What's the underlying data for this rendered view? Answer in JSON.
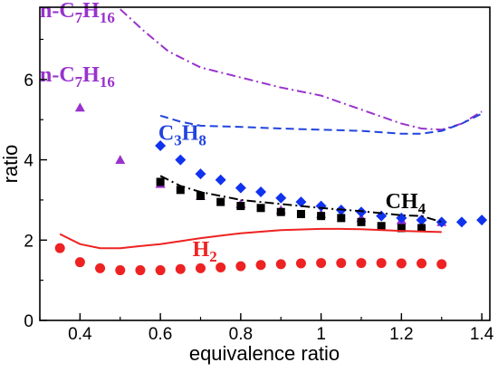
{
  "chart_data": {
    "type": "scatter",
    "xlabel": "equivalence ratio",
    "ylabel": "ratio",
    "xlim": [
      0.3,
      1.42
    ],
    "ylim": [
      0,
      7.8
    ],
    "xticks": [
      "0.4",
      "0.6",
      "0.8",
      "1",
      "1.2",
      "1.4"
    ],
    "xtick_values": [
      0.4,
      0.6,
      0.8,
      1.0,
      1.2,
      1.4
    ],
    "yticks": [
      "0",
      "2",
      "4",
      "6"
    ],
    "ytick_values": [
      0,
      2,
      4,
      6
    ],
    "grid": false,
    "series": [
      {
        "kind": "line",
        "style": "dash-dot",
        "color": "#9933cc",
        "x": [
          0.5,
          0.56,
          0.62,
          0.7,
          0.8,
          0.9,
          1.0,
          1.1,
          1.2,
          1.25,
          1.3,
          1.35,
          1.4
        ],
        "values": [
          7.75,
          7.2,
          6.7,
          6.3,
          6.05,
          5.8,
          5.6,
          5.25,
          4.9,
          4.78,
          4.75,
          4.9,
          5.2
        ]
      },
      {
        "kind": "markers",
        "marker": "triangle",
        "color": "#9933cc",
        "x": [
          0.4,
          0.5,
          0.6,
          0.7,
          0.8,
          0.9,
          1.0,
          1.1,
          1.2,
          1.3
        ],
        "values": [
          5.3,
          4.0,
          3.4,
          3.1,
          2.9,
          2.75,
          2.65,
          2.55,
          2.5,
          2.45
        ]
      },
      {
        "kind": "line",
        "style": "dashed",
        "color": "#2244dd",
        "x": [
          0.6,
          0.65,
          0.7,
          0.8,
          0.9,
          1.0,
          1.1,
          1.2,
          1.25,
          1.3,
          1.35,
          1.4
        ],
        "values": [
          5.1,
          4.95,
          4.85,
          4.82,
          4.78,
          4.75,
          4.72,
          4.65,
          4.65,
          4.72,
          4.9,
          5.15
        ]
      },
      {
        "kind": "markers",
        "marker": "diamond",
        "color": "#1133ee",
        "x": [
          0.6,
          0.65,
          0.7,
          0.75,
          0.8,
          0.85,
          0.9,
          0.95,
          1.0,
          1.05,
          1.1,
          1.15,
          1.2,
          1.25,
          1.3,
          1.35,
          1.4
        ],
        "values": [
          4.35,
          4.0,
          3.65,
          3.5,
          3.3,
          3.2,
          3.05,
          2.95,
          2.85,
          2.75,
          2.7,
          2.6,
          2.55,
          2.5,
          2.45,
          2.45,
          2.5
        ]
      },
      {
        "kind": "line",
        "style": "dash-dot",
        "color": "#000000",
        "x": [
          0.6,
          0.65,
          0.7,
          0.75,
          0.8,
          0.9,
          1.0,
          1.1,
          1.2,
          1.25,
          1.3
        ],
        "values": [
          3.6,
          3.35,
          3.2,
          3.1,
          3.0,
          2.9,
          2.8,
          2.72,
          2.62,
          2.6,
          2.45
        ]
      },
      {
        "kind": "markers",
        "marker": "square",
        "color": "#000000",
        "x": [
          0.6,
          0.65,
          0.7,
          0.75,
          0.8,
          0.85,
          0.9,
          0.95,
          1.0,
          1.05,
          1.1,
          1.15,
          1.2,
          1.25
        ],
        "values": [
          3.45,
          3.25,
          3.1,
          2.95,
          2.85,
          2.8,
          2.7,
          2.65,
          2.6,
          2.55,
          2.45,
          2.35,
          2.3,
          2.3
        ]
      },
      {
        "kind": "line",
        "style": "solid",
        "color": "#ee2222",
        "x": [
          0.35,
          0.4,
          0.45,
          0.5,
          0.55,
          0.6,
          0.7,
          0.8,
          0.9,
          1.0,
          1.05,
          1.1,
          1.2,
          1.3
        ],
        "values": [
          2.15,
          1.9,
          1.8,
          1.8,
          1.85,
          1.9,
          2.05,
          2.17,
          2.25,
          2.28,
          2.28,
          2.27,
          2.23,
          2.2
        ]
      },
      {
        "kind": "markers",
        "marker": "circle",
        "color": "#ee2222",
        "x": [
          0.35,
          0.4,
          0.45,
          0.5,
          0.55,
          0.6,
          0.65,
          0.7,
          0.75,
          0.8,
          0.85,
          0.9,
          0.95,
          1.0,
          1.05,
          1.1,
          1.15,
          1.2,
          1.25,
          1.3
        ],
        "values": [
          1.8,
          1.45,
          1.3,
          1.25,
          1.25,
          1.25,
          1.28,
          1.3,
          1.32,
          1.35,
          1.38,
          1.4,
          1.42,
          1.43,
          1.43,
          1.43,
          1.43,
          1.42,
          1.42,
          1.4
        ]
      }
    ],
    "annotations": [
      {
        "text": "n-C7H16",
        "parts": [
          [
            "n-C",
            ""
          ],
          [
            "7",
            "sub"
          ],
          [
            "H",
            ""
          ],
          [
            "16",
            "sub"
          ]
        ],
        "color": "#9933cc",
        "x": 0.3,
        "y": 7.55,
        "size": 24
      },
      {
        "text": "n-C7H16",
        "parts": [
          [
            "n-C",
            ""
          ],
          [
            "7",
            "sub"
          ],
          [
            "H",
            ""
          ],
          [
            "16",
            "sub"
          ]
        ],
        "color": "#9933cc",
        "x": 0.3,
        "y": 5.95,
        "size": 24
      },
      {
        "text": "C3H8",
        "parts": [
          [
            "C",
            ""
          ],
          [
            "3",
            "sub"
          ],
          [
            "H",
            ""
          ],
          [
            "8",
            "sub"
          ]
        ],
        "color": "#2244dd",
        "x": 0.595,
        "y": 4.5,
        "size": 24
      },
      {
        "text": "CH4",
        "parts": [
          [
            "CH",
            ""
          ],
          [
            "4",
            "sub"
          ]
        ],
        "color": "#000000",
        "x": 1.16,
        "y": 2.8,
        "size": 24
      },
      {
        "text": "H2",
        "parts": [
          [
            "H",
            ""
          ],
          [
            "2",
            "sub"
          ]
        ],
        "color": "#ee2222",
        "x": 0.68,
        "y": 1.6,
        "size": 24
      }
    ]
  }
}
